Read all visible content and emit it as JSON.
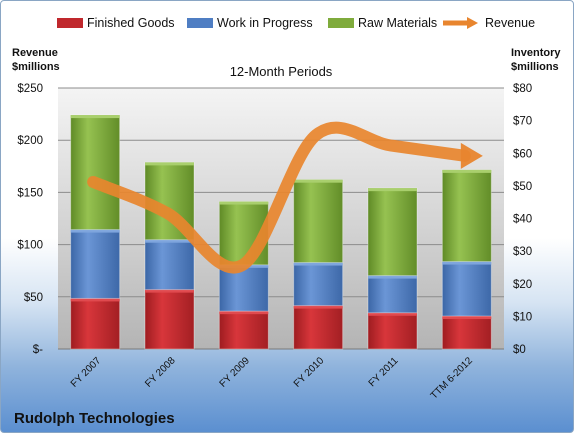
{
  "chart_data": {
    "type": "bar",
    "stacked": true,
    "title": "Rudolph Technologies",
    "subtitle": "12-Month Periods",
    "categories": [
      "FY 2007",
      "FY 2008",
      "FY 2009",
      "FY 2010",
      "FY 2011",
      "TTM 6-2012"
    ],
    "series": [
      {
        "name": "Finished Goods",
        "axis": "right",
        "color": "#c0282d",
        "values": [
          15.5,
          18.2,
          11.6,
          13.3,
          11.1,
          10.1
        ]
      },
      {
        "name": "Work in Progress",
        "axis": "right",
        "color": "#4f7ec3",
        "values": [
          21.1,
          15.3,
          14.2,
          13.2,
          11.4,
          16.7
        ]
      },
      {
        "name": "Raw Materials",
        "axis": "right",
        "color": "#7fab3c",
        "values": [
          35.1,
          23.7,
          19.4,
          25.4,
          26.8,
          28.1
        ]
      },
      {
        "name": "Revenue",
        "axis": "left",
        "type": "line",
        "color": "#e8852e",
        "values": [
          160,
          130,
          80,
          205,
          195,
          185
        ]
      }
    ],
    "left_axis": {
      "label_line1": "Revenue",
      "label_line2": "$millions",
      "ylim": [
        0,
        250
      ],
      "ticks": [
        {
          "v": 0,
          "t": "$-"
        },
        {
          "v": 50,
          "t": "$50"
        },
        {
          "v": 100,
          "t": "$100"
        },
        {
          "v": 150,
          "t": "$150"
        },
        {
          "v": 200,
          "t": "$200"
        },
        {
          "v": 250,
          "t": "$250"
        }
      ]
    },
    "right_axis": {
      "label_line1": "Inventory",
      "label_line2": "$millions",
      "ylim": [
        0,
        80
      ],
      "ticks": [
        {
          "v": 0,
          "t": "$0"
        },
        {
          "v": 10,
          "t": "$10"
        },
        {
          "v": 20,
          "t": "$20"
        },
        {
          "v": 30,
          "t": "$30"
        },
        {
          "v": 40,
          "t": "$40"
        },
        {
          "v": 50,
          "t": "$50"
        },
        {
          "v": 60,
          "t": "$60"
        },
        {
          "v": 70,
          "t": "$70"
        },
        {
          "v": 80,
          "t": "$80"
        }
      ]
    },
    "grid": true,
    "legend_position": "top"
  }
}
